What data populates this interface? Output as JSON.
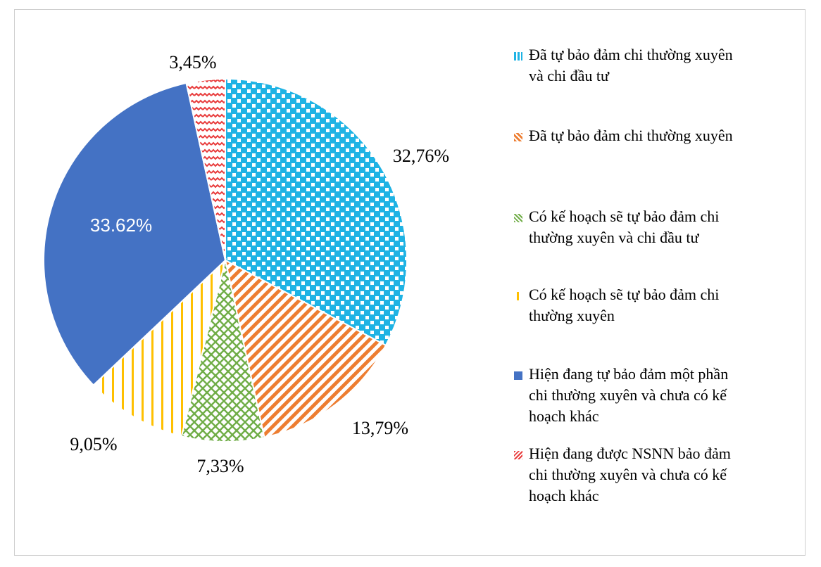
{
  "chart_data": {
    "type": "pie",
    "slices": [
      {
        "label": "Đã tự bảo đảm chi thường xuyên và chi đầu tư",
        "value": 32.76,
        "display": "32,76%",
        "color": "#1fb3e4",
        "pattern": "dotted-grid"
      },
      {
        "label": "Đã tự bảo đảm chi thường xuyên",
        "value": 13.79,
        "display": "13,79%",
        "color": "#ed7d31",
        "pattern": "diagonal-wave"
      },
      {
        "label": "Có kế hoạch sẽ tự bảo đảm chi thường xuyên và chi đầu tư",
        "value": 7.33,
        "display": "7,33%",
        "color": "#70ad47",
        "pattern": "cross-hatch"
      },
      {
        "label": "Có kế hoạch sẽ tự bảo đảm chi thường xuyên",
        "value": 9.05,
        "display": "9,05%",
        "color": "#ffc000",
        "pattern": "vertical-lines"
      },
      {
        "label": "Hiện đang tự bảo đảm một phần chi thường xuyên và chưa có kế hoạch khác",
        "value": 33.62,
        "display": "33.62%",
        "color": "#4472c4",
        "pattern": "solid"
      },
      {
        "label": "Hiện đang được NSNN bảo đảm chi thường xuyên và chưa có kế hoạch khác",
        "value": 3.45,
        "display": "3,45%",
        "color": "#e83b3b",
        "pattern": "zigzag"
      }
    ],
    "legend_position": "right"
  },
  "legend": [
    {
      "line1": "Đã tự bảo đảm chi thường xuyên",
      "line2": "và chi đầu tư",
      "line3": ""
    },
    {
      "line1": "Đã tự bảo đảm chi thường xuyên",
      "line2": "",
      "line3": ""
    },
    {
      "line1": "Có kế hoạch sẽ tự bảo đảm chi",
      "line2": "thường xuyên và chi đầu tư",
      "line3": ""
    },
    {
      "line1": "Có kế hoạch sẽ tự bảo đảm chi",
      "line2": "thường xuyên",
      "line3": ""
    },
    {
      "line1": "Hiện đang tự bảo đảm một phần",
      "line2": "chi thường xuyên và chưa có kế",
      "line3": "hoạch khác"
    },
    {
      "line1": "Hiện đang được NSNN bảo đảm",
      "line2": "chi thường xuyên và chưa có kế",
      "line3": "hoạch khác"
    }
  ]
}
